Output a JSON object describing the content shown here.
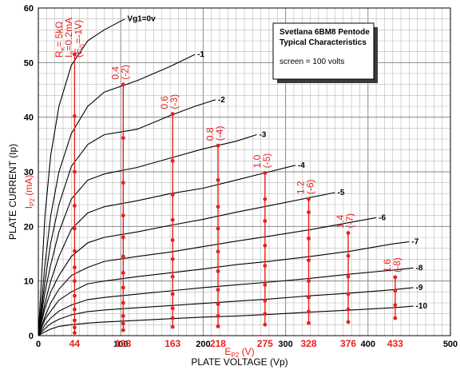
{
  "chart_data": {
    "type": "line",
    "xlabel": "PLATE VOLTAGE (Vp)",
    "ylabel": "PLATE CURRENT (Ip)",
    "xlim": [
      0,
      500
    ],
    "ylim": [
      0,
      60
    ],
    "x_ticks": [
      0,
      100,
      200,
      300,
      400,
      500
    ],
    "y_ticks": [
      0,
      10,
      20,
      30,
      40,
      50,
      60
    ],
    "grid": true,
    "legend": {
      "placement": "top-right",
      "title_lines": [
        "Svetlana 6BM8 Pentode",
        "Typical Characteristics"
      ],
      "note": "screen = 100 volts"
    },
    "red_xlabel": "E",
    "red_xlabel_sub": "P2",
    "red_xlabel_tail": "(V)",
    "red_ylabel": "I",
    "red_ylabel_sub": "P2",
    "red_ylabel_tail": "(mA)",
    "red_x_ticks": [
      44,
      103,
      163,
      218,
      275,
      328,
      376,
      433
    ],
    "load_label": {
      "line1": "R",
      "line1_sub": "K",
      "line1_tail": "= 5kΩ",
      "line2": "I",
      "line2_sub": "D",
      "line2_tail": "=0.2mA",
      "line3": "(E",
      "line3_sub": "G",
      "line3_tail": "=-1V)"
    },
    "series": [
      {
        "name": "Vg1=0v",
        "color": "#000000",
        "points": [
          [
            0,
            0
          ],
          [
            8,
            22
          ],
          [
            15,
            33
          ],
          [
            25,
            42
          ],
          [
            40,
            49.5
          ],
          [
            60,
            54
          ],
          [
            80,
            56
          ],
          [
            105,
            58
          ]
        ]
      },
      {
        "name": "-1",
        "color": "#000000",
        "points": [
          [
            0,
            0
          ],
          [
            8,
            13
          ],
          [
            15,
            22
          ],
          [
            25,
            30
          ],
          [
            40,
            37
          ],
          [
            60,
            42
          ],
          [
            80,
            44.6
          ],
          [
            120,
            46.7
          ],
          [
            160,
            49.3
          ],
          [
            190,
            51.5
          ]
        ]
      },
      {
        "name": "-2",
        "color": "#000000",
        "points": [
          [
            0,
            0
          ],
          [
            8,
            10
          ],
          [
            15,
            17
          ],
          [
            25,
            24
          ],
          [
            40,
            31
          ],
          [
            60,
            35
          ],
          [
            80,
            36.8
          ],
          [
            120,
            37.8
          ],
          [
            160,
            40.3
          ],
          [
            190,
            42
          ],
          [
            215,
            43.2
          ]
        ]
      },
      {
        "name": "-3",
        "color": "#000000",
        "points": [
          [
            0,
            0
          ],
          [
            8,
            8
          ],
          [
            15,
            13
          ],
          [
            25,
            19
          ],
          [
            40,
            25
          ],
          [
            60,
            28.5
          ],
          [
            80,
            29.6
          ],
          [
            120,
            30.8
          ],
          [
            160,
            32.5
          ],
          [
            200,
            34.2
          ],
          [
            240,
            35.6
          ],
          [
            265,
            36.8
          ]
        ]
      },
      {
        "name": "-4",
        "color": "#000000",
        "points": [
          [
            0,
            0
          ],
          [
            8,
            6
          ],
          [
            15,
            10
          ],
          [
            25,
            14.5
          ],
          [
            40,
            19.5
          ],
          [
            60,
            22.5
          ],
          [
            80,
            23.6
          ],
          [
            120,
            24.7
          ],
          [
            160,
            26
          ],
          [
            200,
            27
          ],
          [
            240,
            28.5
          ],
          [
            280,
            30
          ],
          [
            312,
            31.2
          ]
        ]
      },
      {
        "name": "-5",
        "color": "#000000",
        "points": [
          [
            0,
            0
          ],
          [
            8,
            5
          ],
          [
            15,
            8
          ],
          [
            25,
            11
          ],
          [
            40,
            14.5
          ],
          [
            60,
            17
          ],
          [
            80,
            18
          ],
          [
            120,
            19
          ],
          [
            160,
            20.2
          ],
          [
            200,
            21.3
          ],
          [
            240,
            22.6
          ],
          [
            280,
            23.8
          ],
          [
            330,
            25.3
          ],
          [
            360,
            26.2
          ]
        ]
      },
      {
        "name": "-6",
        "color": "#000000",
        "points": [
          [
            0,
            0
          ],
          [
            8,
            3.5
          ],
          [
            15,
            6
          ],
          [
            25,
            8.5
          ],
          [
            40,
            11
          ],
          [
            60,
            12.5
          ],
          [
            80,
            13.6
          ],
          [
            120,
            14.5
          ],
          [
            160,
            15.3
          ],
          [
            200,
            16.3
          ],
          [
            240,
            17.3
          ],
          [
            280,
            18.2
          ],
          [
            330,
            19.4
          ],
          [
            380,
            20.8
          ],
          [
            410,
            21.6
          ]
        ]
      },
      {
        "name": "-7",
        "color": "#000000",
        "points": [
          [
            0,
            0
          ],
          [
            8,
            3
          ],
          [
            15,
            4.5
          ],
          [
            25,
            6.5
          ],
          [
            40,
            8
          ],
          [
            60,
            9.5
          ],
          [
            80,
            10
          ],
          [
            120,
            10.8
          ],
          [
            160,
            11.5
          ],
          [
            200,
            12.2
          ],
          [
            240,
            13
          ],
          [
            280,
            13.6
          ],
          [
            330,
            14.5
          ],
          [
            380,
            15.5
          ],
          [
            430,
            16.8
          ],
          [
            450,
            17.2
          ]
        ]
      },
      {
        "name": "-8",
        "color": "#000000",
        "points": [
          [
            0,
            0
          ],
          [
            8,
            2
          ],
          [
            15,
            3.2
          ],
          [
            25,
            4.5
          ],
          [
            40,
            5.6
          ],
          [
            60,
            6.6
          ],
          [
            80,
            7
          ],
          [
            120,
            7.6
          ],
          [
            160,
            8.2
          ],
          [
            200,
            8.8
          ],
          [
            240,
            9.3
          ],
          [
            280,
            9.8
          ],
          [
            330,
            10.5
          ],
          [
            380,
            11.3
          ],
          [
            430,
            12
          ],
          [
            455,
            12.4
          ]
        ]
      },
      {
        "name": "-9",
        "color": "#000000",
        "points": [
          [
            0,
            0
          ],
          [
            8,
            1.3
          ],
          [
            15,
            2.2
          ],
          [
            25,
            3
          ],
          [
            40,
            3.8
          ],
          [
            60,
            4.4
          ],
          [
            80,
            4.7
          ],
          [
            120,
            5.1
          ],
          [
            160,
            5.5
          ],
          [
            200,
            5.9
          ],
          [
            240,
            6.3
          ],
          [
            280,
            6.7
          ],
          [
            330,
            7.3
          ],
          [
            380,
            7.8
          ],
          [
            430,
            8.4
          ],
          [
            455,
            8.8
          ]
        ]
      },
      {
        "name": "-10",
        "color": "#000000",
        "points": [
          [
            0,
            0
          ],
          [
            8,
            0.7
          ],
          [
            15,
            1.2
          ],
          [
            25,
            1.7
          ],
          [
            40,
            2
          ],
          [
            60,
            2.3
          ],
          [
            80,
            2.5
          ],
          [
            120,
            2.8
          ],
          [
            160,
            3.1
          ],
          [
            200,
            3.4
          ],
          [
            240,
            3.6
          ],
          [
            280,
            3.9
          ],
          [
            330,
            4.3
          ],
          [
            380,
            4.7
          ],
          [
            430,
            5.1
          ],
          [
            455,
            5.4
          ]
        ]
      }
    ],
    "red_points": [
      {
        "x": 44,
        "values": [
          0.5,
          1.5,
          2.8,
          4.8,
          7.3,
          10,
          12.5,
          15.5,
          19.6,
          23.8,
          30,
          40.2,
          51.5
        ]
      },
      {
        "x": 103,
        "values": [
          1,
          2.2,
          3.6,
          6,
          8.8,
          11.5,
          14.5,
          18,
          22,
          28,
          36.2,
          46
        ]
      },
      {
        "x": 163,
        "values": [
          1.6,
          3.2,
          5,
          7.6,
          10.8,
          14,
          17.5,
          21.2,
          25.8,
          32,
          40.6
        ]
      },
      {
        "x": 218,
        "values": [
          1.7,
          3.6,
          5.8,
          8.4,
          11.8,
          15.4,
          19.6,
          23.6,
          28.5,
          34.8
        ]
      },
      {
        "x": 275,
        "values": [
          2,
          4,
          6.4,
          9.3,
          12.8,
          16.5,
          21,
          25,
          29.8
        ]
      },
      {
        "x": 328,
        "values": [
          2.3,
          4.4,
          7,
          10,
          13.8,
          17.8,
          22.6,
          25
        ]
      },
      {
        "x": 376,
        "values": [
          2.5,
          4.8,
          7.6,
          10.8,
          14.6,
          18.8
        ]
      },
      {
        "x": 433,
        "values": [
          3.2,
          5.6,
          8.2,
          10.7
        ]
      }
    ],
    "red_annotations": [
      {
        "x": 103,
        "line1": "0.4",
        "line2": "(-2)"
      },
      {
        "x": 163,
        "line1": "0.6",
        "line2": "(-3)"
      },
      {
        "x": 218,
        "line1": "0.8",
        "line2": "(-4)"
      },
      {
        "x": 275,
        "line1": "1.0",
        "line2": "(-5)"
      },
      {
        "x": 328,
        "line1": "1.2",
        "line2": "(-6)"
      },
      {
        "x": 376,
        "line1": "1.4",
        "line2": "(-7)"
      },
      {
        "x": 433,
        "line1": "1.6",
        "line2": "(-8)"
      }
    ]
  }
}
